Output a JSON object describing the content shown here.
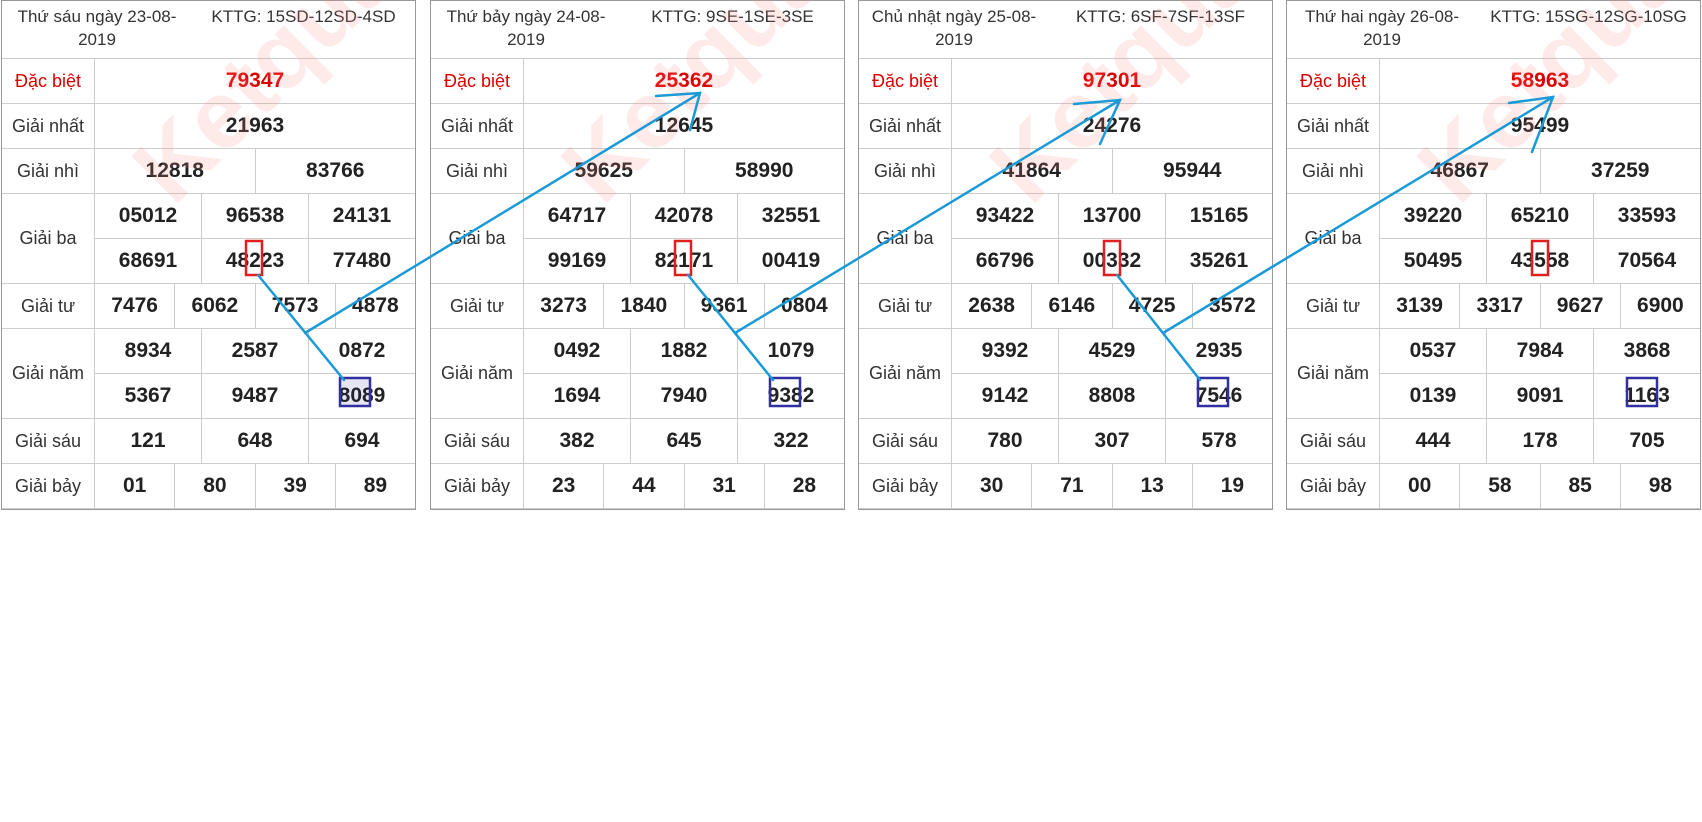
{
  "watermark": "Ketqua.net",
  "labels": {
    "special": "Đặc biệt",
    "first": "Giải nhất",
    "second": "Giải nhì",
    "third": "Giải ba",
    "fourth": "Giải tư",
    "fifth": "Giải năm",
    "sixth": "Giải sáu",
    "seventh": "Giải bảy"
  },
  "colors": {
    "special_text": "#dd0000",
    "arrow": "#1a9ad6",
    "red_box": "#e02020",
    "blue_box": "#3030a0"
  },
  "boards": [
    {
      "date": "Thứ sáu ngày 23-08-2019",
      "code": "KTTG: 15SD-12SD-4SD",
      "special": "79347",
      "first": "21963",
      "second": [
        "12818",
        "83766"
      ],
      "third_row1": [
        "05012",
        "96538",
        "24131"
      ],
      "third_row2": [
        "68691",
        "48223",
        "77480"
      ],
      "fourth": [
        "7476",
        "6062",
        "7573",
        "4878"
      ],
      "fifth_row1": [
        "8934",
        "2587",
        "0872"
      ],
      "fifth_row2": [
        "5367",
        "9487",
        "8089"
      ],
      "sixth": [
        "121",
        "648",
        "694"
      ],
      "seventh": [
        "01",
        "80",
        "39",
        "89"
      ]
    },
    {
      "date": "Thứ bảy ngày 24-08-2019",
      "code": "KTTG: 9SE-1SE-3SE",
      "special": "25362",
      "first": "12645",
      "second": [
        "59625",
        "58990"
      ],
      "third_row1": [
        "64717",
        "42078",
        "32551"
      ],
      "third_row2": [
        "99169",
        "82171",
        "00419"
      ],
      "fourth": [
        "3273",
        "1840",
        "9361",
        "0804"
      ],
      "fifth_row1": [
        "0492",
        "1882",
        "1079"
      ],
      "fifth_row2": [
        "1694",
        "7940",
        "9382"
      ],
      "sixth": [
        "382",
        "645",
        "322"
      ],
      "seventh": [
        "23",
        "44",
        "31",
        "28"
      ]
    },
    {
      "date": "Chủ nhật ngày 25-08-2019",
      "code": "KTTG: 6SF-7SF-13SF",
      "special": "97301",
      "first": "24276",
      "second": [
        "41864",
        "95944"
      ],
      "third_row1": [
        "93422",
        "13700",
        "15165"
      ],
      "third_row2": [
        "66796",
        "00332",
        "35261"
      ],
      "fourth": [
        "2638",
        "6146",
        "4725",
        "3572"
      ],
      "fifth_row1": [
        "9392",
        "4529",
        "2935"
      ],
      "fifth_row2": [
        "9142",
        "8808",
        "7546"
      ],
      "sixth": [
        "780",
        "307",
        "578"
      ],
      "seventh": [
        "30",
        "71",
        "13",
        "19"
      ]
    },
    {
      "date": "Thứ hai ngày 26-08-2019",
      "code": "KTTG: 15SG-12SG-10SG",
      "special": "58963",
      "first": "95499",
      "second": [
        "46867",
        "37259"
      ],
      "third_row1": [
        "39220",
        "65210",
        "33593"
      ],
      "third_row2": [
        "50495",
        "43558",
        "70564"
      ],
      "fourth": [
        "3139",
        "3317",
        "9627",
        "6900"
      ],
      "fifth_row1": [
        "0537",
        "7984",
        "3868"
      ],
      "fifth_row2": [
        "0139",
        "9091",
        "1163"
      ],
      "sixth": [
        "444",
        "178",
        "705"
      ],
      "seventh": [
        "00",
        "58",
        "85",
        "98"
      ]
    }
  ]
}
